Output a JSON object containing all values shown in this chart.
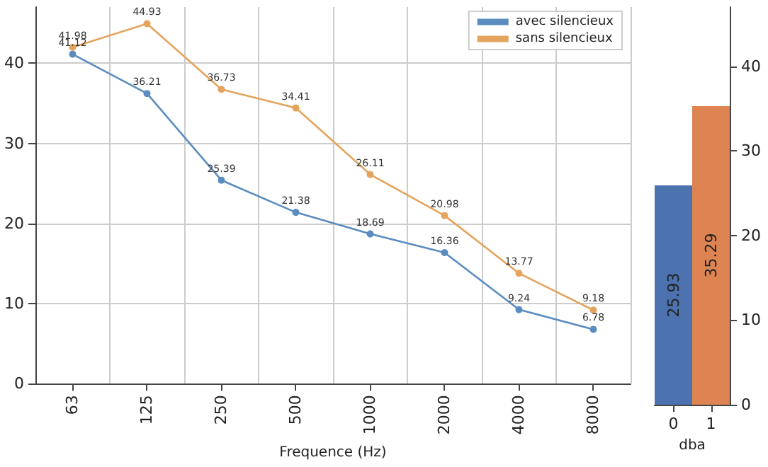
{
  "chart_data": [
    {
      "type": "line",
      "xlabel": "Frequence (Hz)",
      "categories": [
        "63",
        "125",
        "250",
        "500",
        "1000",
        "2000",
        "4000",
        "8000"
      ],
      "series": [
        {
          "name": "avec silencieux",
          "color": "#5b8cc0",
          "values": [
            41.12,
            36.21,
            25.39,
            21.38,
            18.69,
            16.36,
            9.24,
            6.78
          ]
        },
        {
          "name": "sans silencieux",
          "color": "#e5a45e",
          "values": [
            41.98,
            44.93,
            36.73,
            34.41,
            26.11,
            20.98,
            13.77,
            9.18
          ]
        }
      ],
      "ylim": [
        0,
        47
      ],
      "yticks": [
        0,
        10,
        20,
        30,
        40
      ],
      "grid": true,
      "legend": "top right",
      "marker": "circle",
      "line_style": "solid",
      "data_labels": true
    },
    {
      "type": "bar",
      "xlabel": "dba",
      "categories": [
        "0",
        "1"
      ],
      "series": [
        {
          "colors": [
            "#4c72b0",
            "#dd8452"
          ],
          "values": [
            25.93,
            35.29
          ],
          "axis": "y2"
        }
      ],
      "y2lim": [
        0,
        47
      ],
      "y2ticks": [
        0,
        10,
        20,
        30,
        40
      ],
      "data_labels": true
    }
  ]
}
